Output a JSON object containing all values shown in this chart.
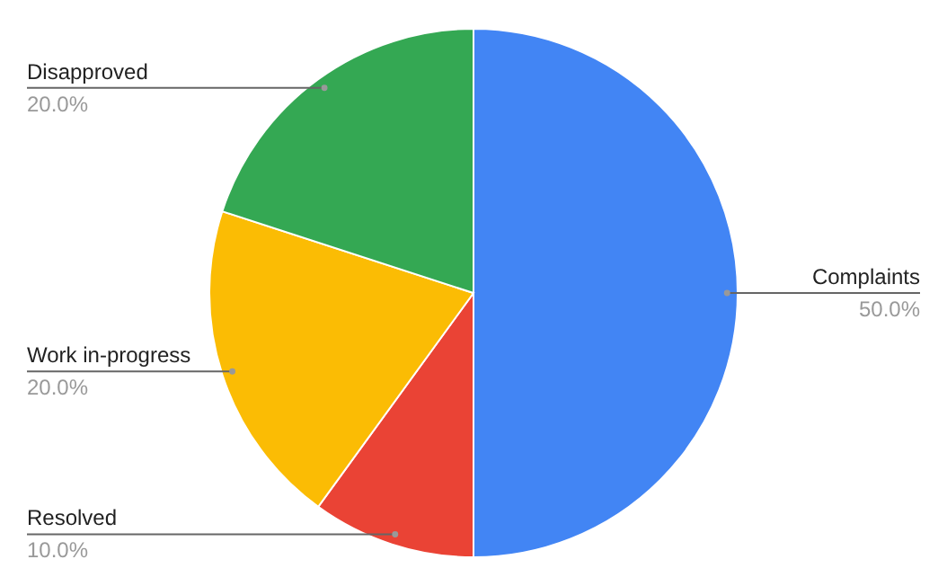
{
  "chart_data": {
    "type": "pie",
    "categories": [
      "Complaints",
      "Resolved",
      "Work in-progress",
      "Disapproved"
    ],
    "values": [
      50,
      10,
      20,
      20
    ],
    "colors": [
      "#4285f4",
      "#ea4335",
      "#fbbc04",
      "#34a853"
    ],
    "value_labels": [
      "50.0%",
      "10.0%",
      "20.0%",
      "20.0%"
    ],
    "legend": false
  }
}
